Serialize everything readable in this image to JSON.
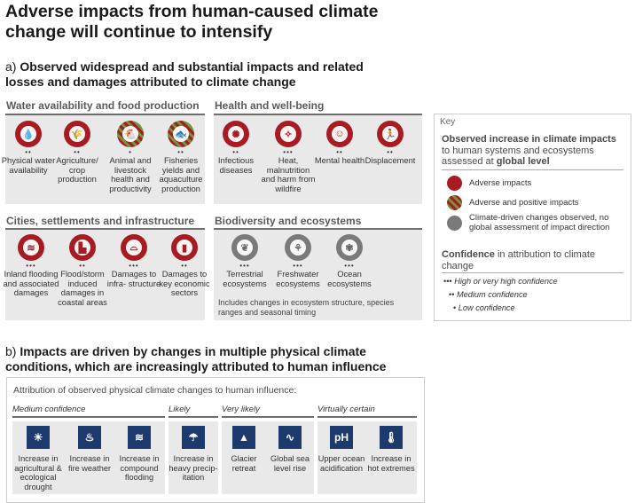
{
  "title": "Adverse impacts from human-caused climate change will continue to intensify",
  "part_a": {
    "prefix": "a) ",
    "heading": "Observed widespread and substantial impacts and related losses and damages attributed to climate change",
    "panels": {
      "water": {
        "title": "Water availability and food production",
        "items": [
          {
            "dots": "••",
            "label": "Physical water availability",
            "icon": "water-drop-icon"
          },
          {
            "dots": "••",
            "label": "Agriculture/ crop production",
            "icon": "wheat-icon"
          },
          {
            "dots": "•",
            "label": "Animal and livestock health and productivity",
            "icon": "chicken-icon"
          },
          {
            "dots": "••",
            "label": "Fisheries yields and aquaculture production",
            "icon": "fish-icon"
          }
        ]
      },
      "health": {
        "title": "Health and well-being",
        "items": [
          {
            "dots": "••",
            "label": "Infectious diseases",
            "icon": "virus-icon"
          },
          {
            "dots": "•••",
            "label": "Heat, malnutrition and harm from wildfire",
            "icon": "tree-icon"
          },
          {
            "dots": "••",
            "label": "Mental health",
            "icon": "head-icon"
          },
          {
            "dots": "••",
            "label": "Displacement",
            "icon": "running-person-icon"
          }
        ]
      },
      "cities": {
        "title": "Cities, settlements and infrastructure",
        "items": [
          {
            "dots": "•••",
            "label": "Inland flooding and associated damages",
            "icon": "flood-icon"
          },
          {
            "dots": "••",
            "label": "Flood/storm induced damages in coastal areas",
            "icon": "factory-icon"
          },
          {
            "dots": "•••",
            "label": "Damages to infra- structure",
            "icon": "bridge-icon"
          },
          {
            "dots": "••",
            "label": "Damages to key economic sectors",
            "icon": "bar-chart-icon"
          }
        ]
      },
      "bio": {
        "title": "Biodiversity and ecosystems",
        "items": [
          {
            "dots": "•••",
            "label": "Terrestrial ecosystems",
            "icon": "leaf-icon"
          },
          {
            "dots": "•••",
            "label": "Freshwater ecosystems",
            "icon": "reeds-icon"
          },
          {
            "dots": "•••",
            "label": "Ocean ecosystems",
            "icon": "coral-icon"
          }
        ],
        "note": "Includes changes in ecosystem structure, species ranges and seasonal timing"
      }
    },
    "key": {
      "title": "Key",
      "heading_1": "Observed increase in climate impacts",
      "heading_2": " to human systems and ecosystems assessed at ",
      "heading_3": "global level",
      "legend": [
        {
          "label": "Adverse impacts"
        },
        {
          "label": "Adverse and positive impacts"
        },
        {
          "label": "Climate-driven changes observed, no global assessment of impact direction"
        }
      ],
      "confidence_bold": "Confidence",
      "confidence_rest": " in attribution to climate change",
      "levels": [
        {
          "dots": "•••",
          "label": "High or very high confidence"
        },
        {
          "dots": "••",
          "label": "Medium confidence"
        },
        {
          "dots": "•",
          "label": "Low confidence"
        }
      ],
      "colors": {
        "adverse": "#a71b22",
        "mixed_green": "#6a9a3a",
        "neutral": "#7a7a7a"
      }
    }
  },
  "part_b": {
    "prefix": "b) ",
    "heading": "Impacts are driven by changes in multiple physical climate conditions, which are increasingly attributed to human influence",
    "intro": "Attribution of observed physical climate changes to human influence:",
    "groups": [
      {
        "label": "Medium confidence",
        "items": [
          {
            "label": "Increase in agricultural & ecological drought",
            "icon": "drought-icon"
          },
          {
            "label": "Increase in fire weather",
            "icon": "fire-icon"
          },
          {
            "label": "Increase in compound flooding",
            "icon": "compound-flood-icon"
          }
        ]
      },
      {
        "label": "Likely",
        "items": [
          {
            "label": "Increase in heavy precip- itation",
            "icon": "rain-cloud-icon"
          }
        ]
      },
      {
        "label": "Very likely",
        "items": [
          {
            "label": "Glacier retreat",
            "icon": "glacier-icon"
          },
          {
            "label": "Global sea level rise",
            "icon": "sea-level-icon"
          }
        ]
      },
      {
        "label": "Virtually certain",
        "items": [
          {
            "label": "Upper ocean acidification",
            "icon": "ph-icon",
            "glyph": "pH"
          },
          {
            "label": "Increase in hot extremes",
            "icon": "thermometer-icon"
          }
        ]
      }
    ],
    "icon_color": "#1d3a6e"
  }
}
